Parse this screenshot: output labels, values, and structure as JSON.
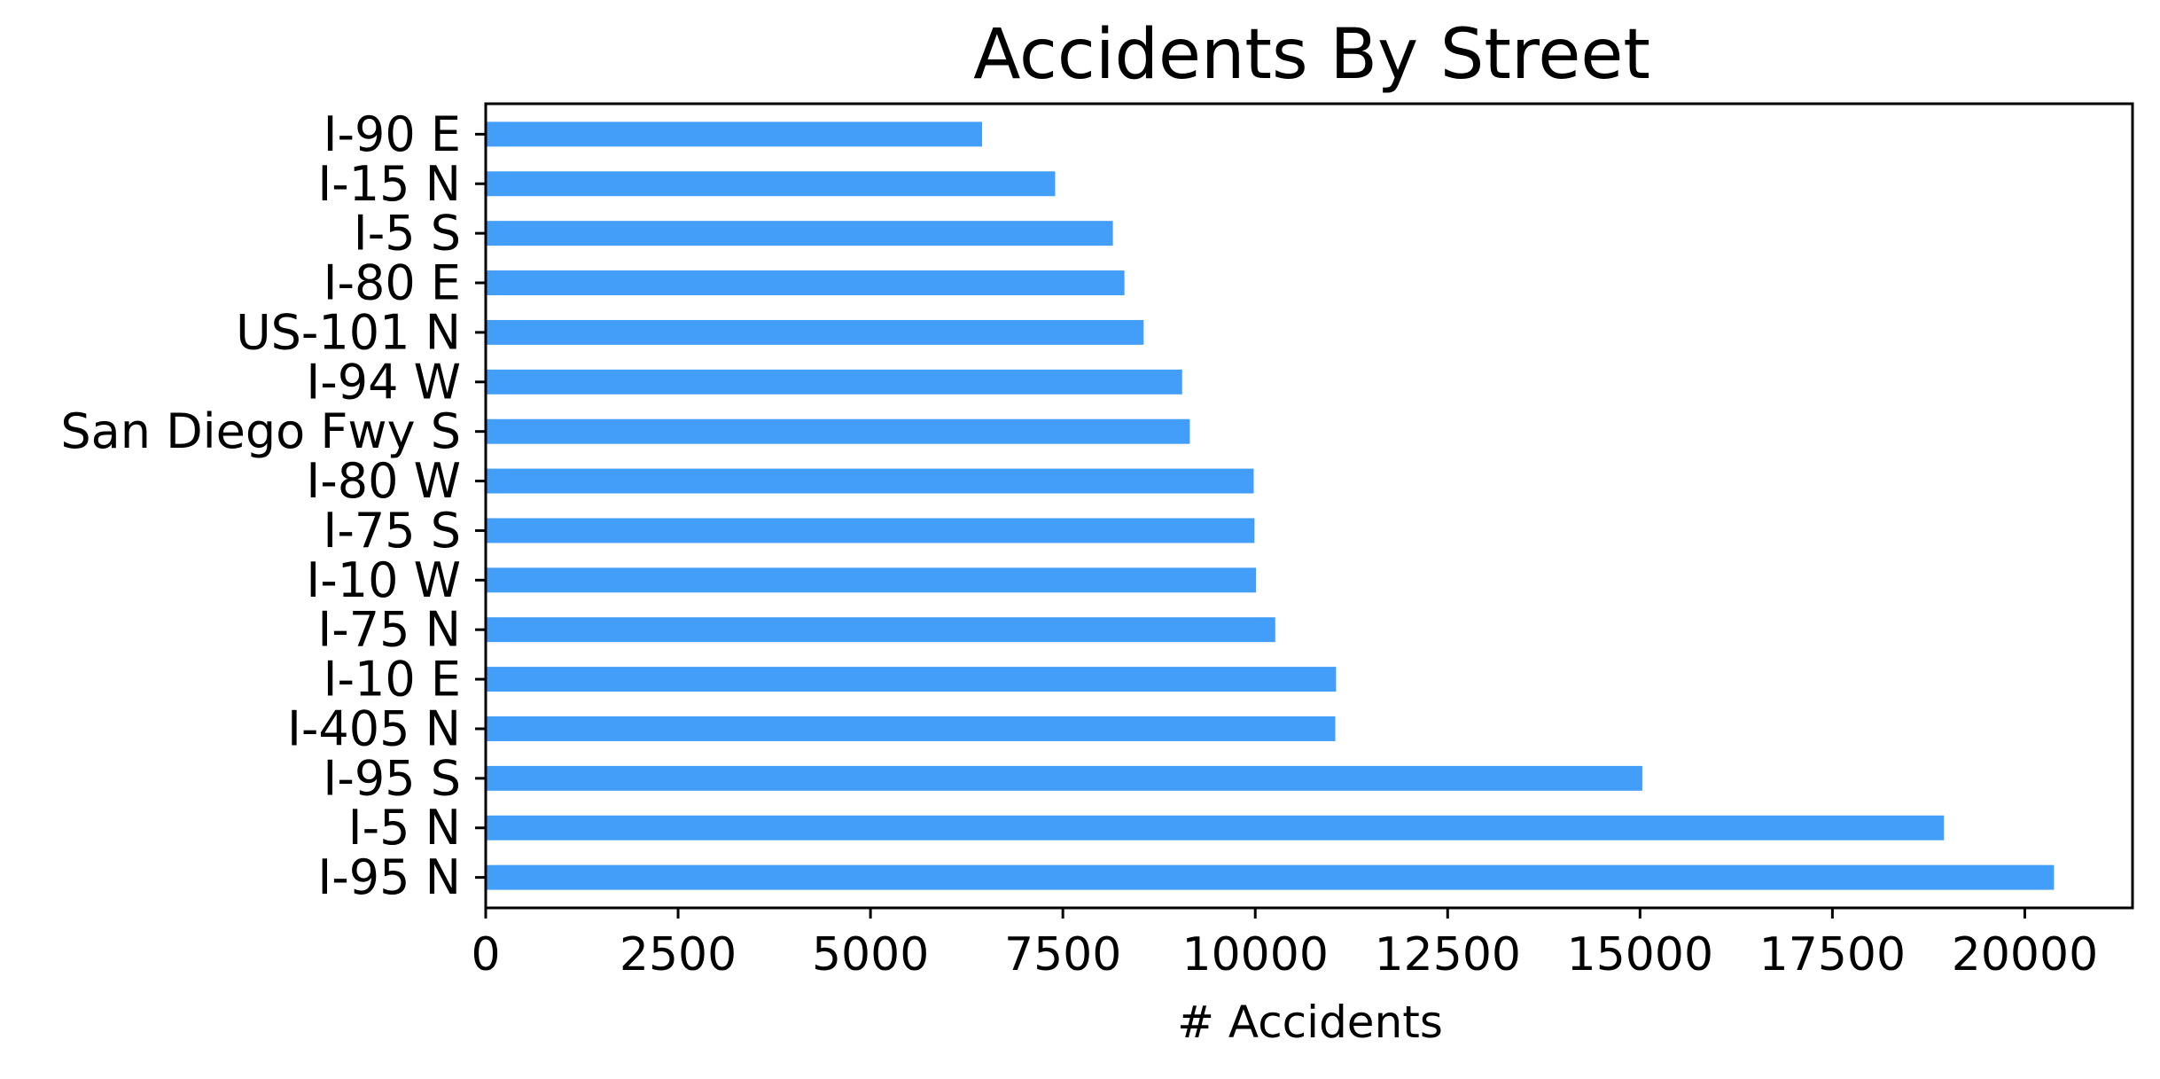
{
  "chart_data": {
    "type": "bar",
    "orientation": "horizontal",
    "title": "Accidents By Street",
    "xlabel": "# Accidents",
    "ylabel": "",
    "xlim": [
      0,
      21400
    ],
    "xticks": [
      0,
      2500,
      5000,
      7500,
      10000,
      12500,
      15000,
      17500,
      20000
    ],
    "xtick_labels": [
      "0",
      "2500",
      "5000",
      "7500",
      "10000",
      "12500",
      "15000",
      "17500",
      "20000"
    ],
    "grid": false,
    "bar_color": "#439ef9",
    "categories": [
      "I-90 E",
      "I-15 N",
      "I-5 S",
      "I-80 E",
      "US-101 N",
      "I-94 W",
      "San Diego Fwy S",
      "I-80 W",
      "I-75 S",
      "I-10 W",
      "I-75 N",
      "I-10 E",
      "I-405 N",
      "I-95 S",
      "I-5 N",
      "I-95 N"
    ],
    "values": [
      6450,
      7400,
      8150,
      8300,
      8550,
      9050,
      9150,
      9980,
      9990,
      10010,
      10260,
      11050,
      11040,
      15030,
      18950,
      20380
    ]
  }
}
